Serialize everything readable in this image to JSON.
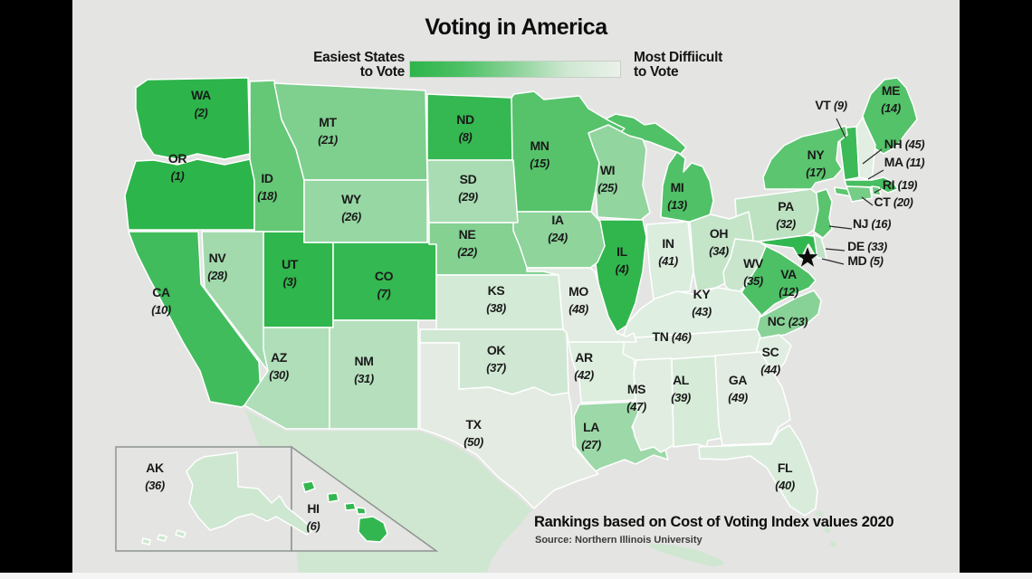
{
  "title": "Voting in America",
  "legend": {
    "left_line1": "Easiest States",
    "left_line2": "to Vote",
    "right_line1": "Most Diffiicult",
    "right_line2": "to Vote",
    "gradient_stops": [
      "#2cb54a",
      "#4ec166",
      "#8bd399",
      "#cfe8d2",
      "#ebf1ea"
    ]
  },
  "footer": {
    "heading": "Rankings based on Cost of Voting Index values 2020",
    "source": "Source: Northern Illinois University"
  },
  "chart_data": {
    "type": "choropleth",
    "title": "Voting in America",
    "scale_meaning": "1 = easiest state to vote, 50 = most difficult to vote",
    "color_ramp": [
      [
        1,
        "#2cb54a"
      ],
      [
        8,
        "#35b852"
      ],
      [
        12,
        "#4dc065"
      ],
      [
        17,
        "#5cc56f"
      ],
      [
        21,
        "#7fcf8e"
      ],
      [
        27,
        "#9cd8a8"
      ],
      [
        32,
        "#bce2c2"
      ],
      [
        36,
        "#cde7d0"
      ],
      [
        40,
        "#d9ecdb"
      ],
      [
        44,
        "#e0eee1"
      ],
      [
        50,
        "#e4ebe2"
      ]
    ],
    "context_land_color": "#cfe7d1",
    "dc_marker": "star",
    "states": [
      {
        "code": "OR",
        "rank": 1
      },
      {
        "code": "WA",
        "rank": 2
      },
      {
        "code": "UT",
        "rank": 3
      },
      {
        "code": "IL",
        "rank": 4
      },
      {
        "code": "MD",
        "rank": 5
      },
      {
        "code": "HI",
        "rank": 6
      },
      {
        "code": "CO",
        "rank": 7
      },
      {
        "code": "ND",
        "rank": 8
      },
      {
        "code": "VT",
        "rank": 9
      },
      {
        "code": "CA",
        "rank": 10
      },
      {
        "code": "MA",
        "rank": 11
      },
      {
        "code": "VA",
        "rank": 12
      },
      {
        "code": "MI",
        "rank": 13
      },
      {
        "code": "ME",
        "rank": 14
      },
      {
        "code": "MN",
        "rank": 15
      },
      {
        "code": "NJ",
        "rank": 16
      },
      {
        "code": "NY",
        "rank": 17
      },
      {
        "code": "ID",
        "rank": 18
      },
      {
        "code": "RI",
        "rank": 19
      },
      {
        "code": "CT",
        "rank": 20
      },
      {
        "code": "MT",
        "rank": 21
      },
      {
        "code": "NE",
        "rank": 22
      },
      {
        "code": "NC",
        "rank": 23
      },
      {
        "code": "IA",
        "rank": 24
      },
      {
        "code": "WI",
        "rank": 25
      },
      {
        "code": "WY",
        "rank": 26
      },
      {
        "code": "LA",
        "rank": 27
      },
      {
        "code": "NV",
        "rank": 28
      },
      {
        "code": "SD",
        "rank": 29
      },
      {
        "code": "AZ",
        "rank": 30
      },
      {
        "code": "NM",
        "rank": 31
      },
      {
        "code": "PA",
        "rank": 32
      },
      {
        "code": "DE",
        "rank": 33
      },
      {
        "code": "OH",
        "rank": 34
      },
      {
        "code": "WV",
        "rank": 35
      },
      {
        "code": "AK",
        "rank": 36
      },
      {
        "code": "OK",
        "rank": 37
      },
      {
        "code": "KS",
        "rank": 38
      },
      {
        "code": "AL",
        "rank": 39
      },
      {
        "code": "FL",
        "rank": 40
      },
      {
        "code": "IN",
        "rank": 41
      },
      {
        "code": "AR",
        "rank": 42
      },
      {
        "code": "KY",
        "rank": 43
      },
      {
        "code": "SC",
        "rank": 44
      },
      {
        "code": "NH",
        "rank": 45
      },
      {
        "code": "TN",
        "rank": 46
      },
      {
        "code": "MS",
        "rank": 47
      },
      {
        "code": "MO",
        "rank": 48
      },
      {
        "code": "GA",
        "rank": 49
      },
      {
        "code": "TX",
        "rank": 50
      }
    ]
  }
}
